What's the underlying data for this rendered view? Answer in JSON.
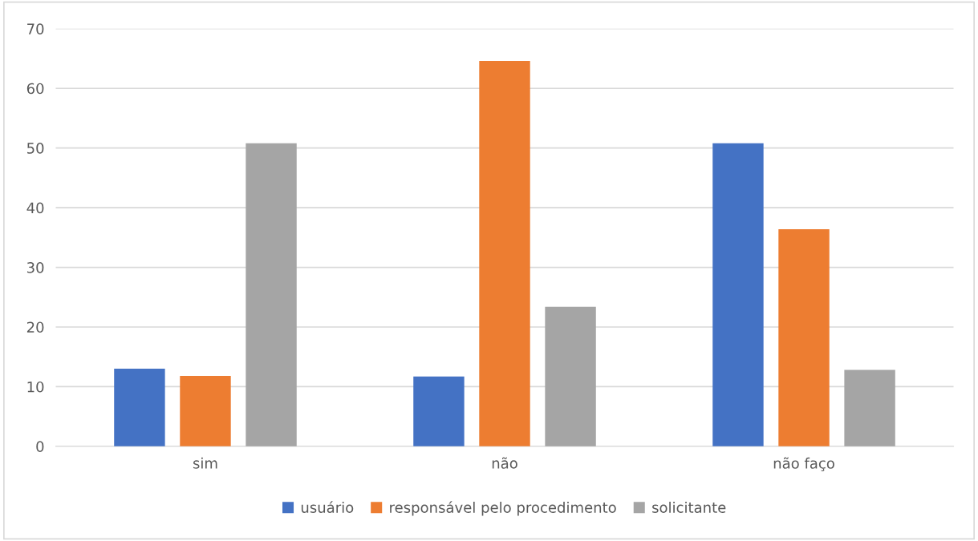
{
  "chart_data": {
    "type": "bar",
    "categories": [
      "sim",
      "não",
      "não faço"
    ],
    "series": [
      {
        "name": "usuário",
        "color": "#4472c4",
        "values": [
          13.0,
          11.7,
          50.8
        ]
      },
      {
        "name": "responsável pelo procedimento",
        "color": "#ed7d31",
        "values": [
          11.8,
          64.6,
          36.4
        ]
      },
      {
        "name": "solicitante",
        "color": "#a5a5a5",
        "values": [
          50.8,
          23.4,
          12.8
        ]
      }
    ],
    "ylim": [
      0,
      70
    ],
    "yticks": [
      0,
      10,
      20,
      30,
      40,
      50,
      60,
      70
    ],
    "grid": "y",
    "legend": "bottom"
  }
}
